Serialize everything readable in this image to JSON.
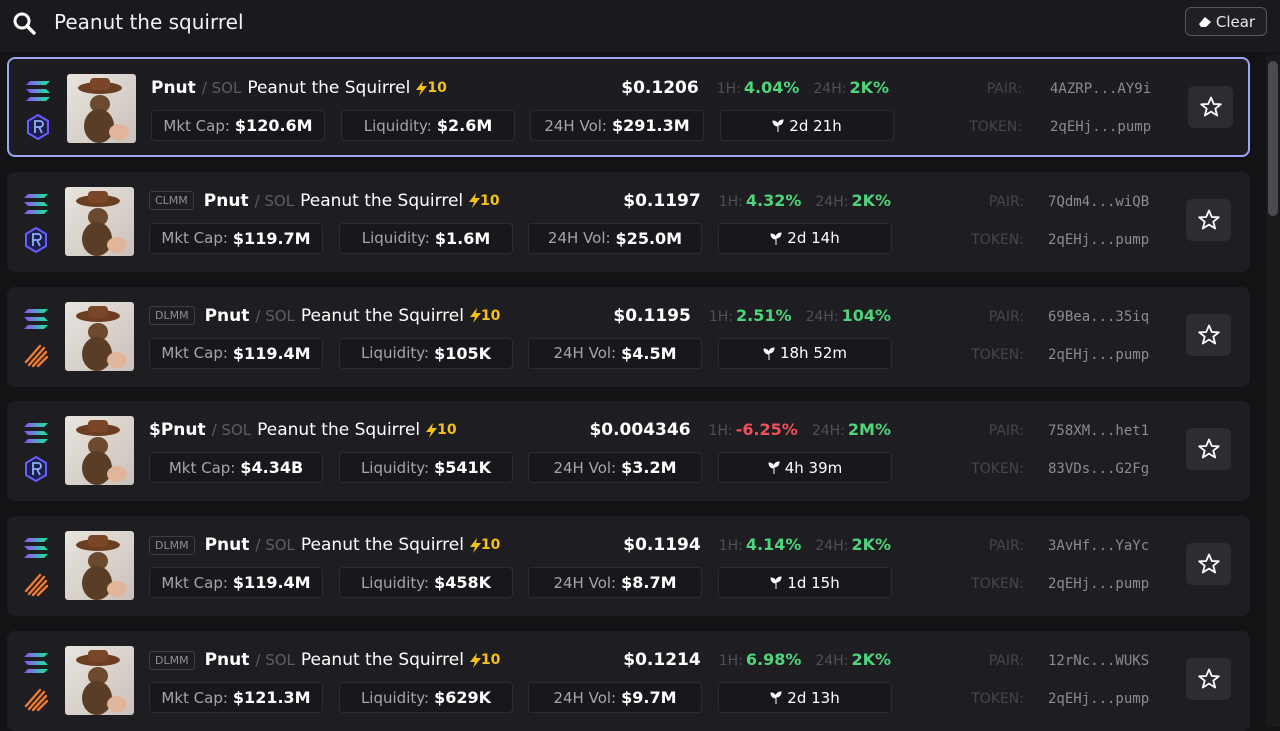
{
  "search": {
    "query": "Peanut the squirrel",
    "clear": "Clear"
  },
  "labels": {
    "mkt_cap": "Mkt Cap:",
    "liquidity": "Liquidity:",
    "volume": "24H Vol:",
    "h1": "1H:",
    "h24": "24H:",
    "pair": "PAIR:",
    "token": "TOKEN:"
  },
  "rows": [
    {
      "symbol": "Pnut",
      "quote": "/ SOL",
      "name": "Peanut the Squirrel",
      "boost": "10",
      "price": "$0.1206",
      "h1": "4.04%",
      "h24": "2K%",
      "mkt_cap": "$120.6M",
      "liquidity": "$2.6M",
      "volume": "$291.3M",
      "age": "2d 21h",
      "pair": "4AZRP...AY9i",
      "token": "2qEHj...pump",
      "dex": "raydium",
      "selected": true
    },
    {
      "badge": "CLMM",
      "symbol": "Pnut",
      "quote": "/ SOL",
      "name": "Peanut the Squirrel",
      "boost": "10",
      "price": "$0.1197",
      "h1": "4.32%",
      "h24": "2K%",
      "mkt_cap": "$119.7M",
      "liquidity": "$1.6M",
      "volume": "$25.0M",
      "age": "2d 14h",
      "pair": "7Qdm4...wiQB",
      "token": "2qEHj...pump",
      "dex": "raydium"
    },
    {
      "badge": "DLMM",
      "symbol": "Pnut",
      "quote": "/ SOL",
      "name": "Peanut the Squirrel",
      "boost": "10",
      "price": "$0.1195",
      "h1": "2.51%",
      "h24": "104%",
      "mkt_cap": "$119.4M",
      "liquidity": "$105K",
      "volume": "$4.5M",
      "age": "18h 52m",
      "pair": "69Bea...35iq",
      "token": "2qEHj...pump",
      "dex": "meteora"
    },
    {
      "symbol": "$Pnut",
      "quote": "/ SOL",
      "name": "Peanut the Squirrel",
      "boost": "10",
      "price": "$0.004346",
      "h1": "-6.25%",
      "h1_color": "#f0505a",
      "h24": "2M%",
      "mkt_cap": "$4.34B",
      "liquidity": "$541K",
      "volume": "$3.2M",
      "age": "4h 39m",
      "pair": "758XM...het1",
      "token": "83VDs...G2Fg",
      "dex": "raydium"
    },
    {
      "badge": "DLMM",
      "symbol": "Pnut",
      "quote": "/ SOL",
      "name": "Peanut the Squirrel",
      "boost": "10",
      "price": "$0.1194",
      "h1": "4.14%",
      "h24": "2K%",
      "mkt_cap": "$119.4M",
      "liquidity": "$458K",
      "volume": "$8.7M",
      "age": "1d 15h",
      "pair": "3AvHf...YaYc",
      "token": "2qEHj...pump",
      "dex": "meteora"
    },
    {
      "badge": "DLMM",
      "symbol": "Pnut",
      "quote": "/ SOL",
      "name": "Peanut the Squirrel",
      "boost": "10",
      "price": "$0.1214",
      "h1": "6.98%",
      "h24": "2K%",
      "mkt_cap": "$121.3M",
      "liquidity": "$629K",
      "volume": "$9.7M",
      "age": "2d 13h",
      "pair": "12rNc...WUKS",
      "token": "2qEHj...pump",
      "dex": "meteora"
    }
  ]
}
